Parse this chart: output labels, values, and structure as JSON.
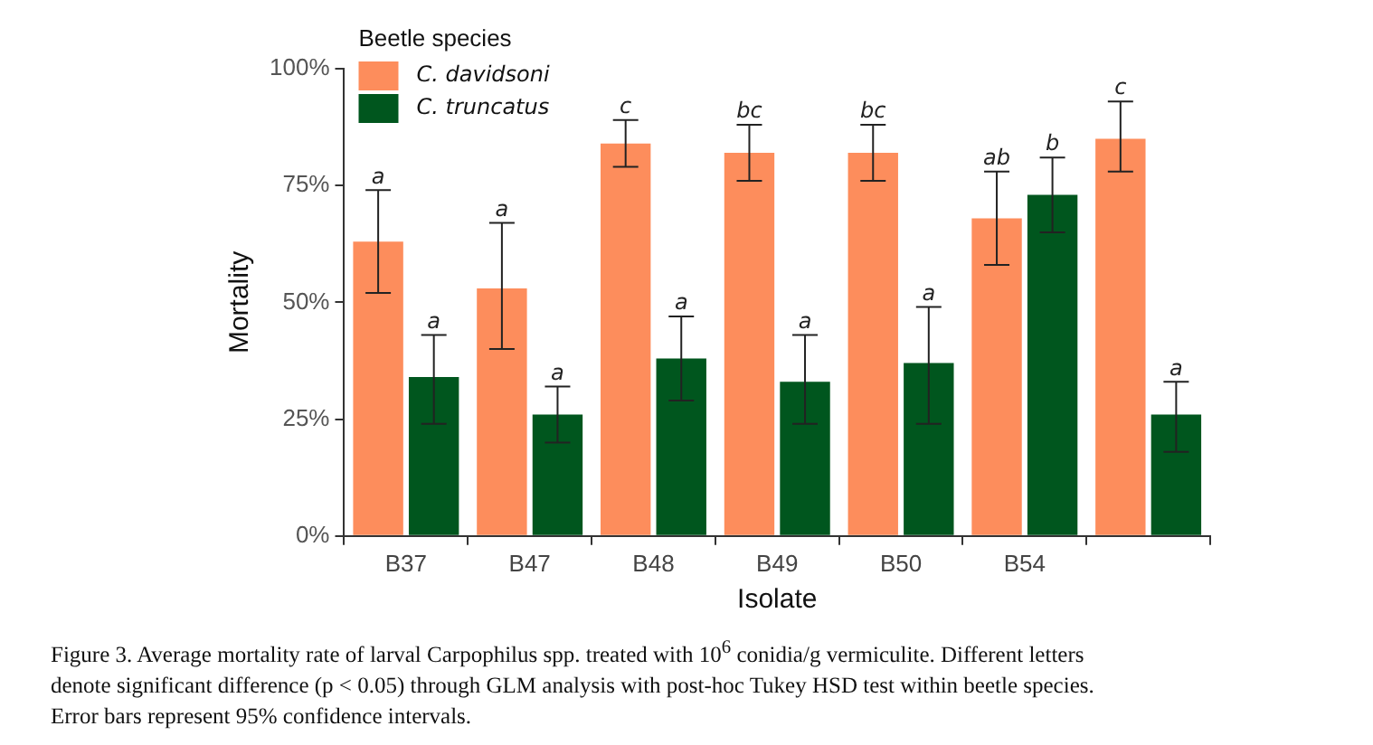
{
  "chart_data": {
    "type": "bar",
    "xlabel": "Isolate",
    "ylabel": "Mortality",
    "legend_title": "Beetle species",
    "legend": "top left",
    "grid": false,
    "categories": [
      "B37",
      "B47",
      "B48",
      "B49",
      "B50",
      "B54",
      null
    ],
    "ylim": [
      0,
      100
    ],
    "yticks": [
      {
        "value": 0,
        "label": "0%"
      },
      {
        "value": 25,
        "label": "25%"
      },
      {
        "value": 50,
        "label": "50%"
      },
      {
        "value": 75,
        "label": "75%"
      },
      {
        "value": 100,
        "label": "100%"
      }
    ],
    "series": [
      {
        "name": "C. davidsoni",
        "color": "#fd8d5c",
        "values": [
          63,
          53,
          84,
          82,
          82,
          68,
          85
        ],
        "errors": [
          [
            52,
            74
          ],
          [
            40,
            67
          ],
          [
            79,
            89
          ],
          [
            76,
            88
          ],
          [
            76,
            88
          ],
          [
            58,
            78
          ],
          [
            78,
            93
          ]
        ],
        "value_labels": [
          "a",
          "a",
          "c",
          "bc",
          "bc",
          "ab",
          "c"
        ]
      },
      {
        "name": "C. truncatus",
        "color": "#00561e",
        "values": [
          34,
          26,
          38,
          33,
          37,
          73,
          26
        ],
        "errors": [
          [
            24,
            43
          ],
          [
            20,
            32
          ],
          [
            29,
            47
          ],
          [
            24,
            43
          ],
          [
            24,
            49
          ],
          [
            65,
            81
          ],
          [
            18,
            33
          ]
        ],
        "value_labels": [
          "a",
          "a",
          "a",
          "a",
          "a",
          "b",
          "a"
        ]
      }
    ],
    "annotations": [
      "Figure 3.  Average mortality rate of larval Carpophilus spp.  treated with 10$^{6}$ conidia/g vermiculite. Different letters denote significant difference (p < 0.05) through GLM analysis with post-hoc Tukey HSD test within beetle species. Error bars represent 95% confidence intervals."
    ]
  }
}
